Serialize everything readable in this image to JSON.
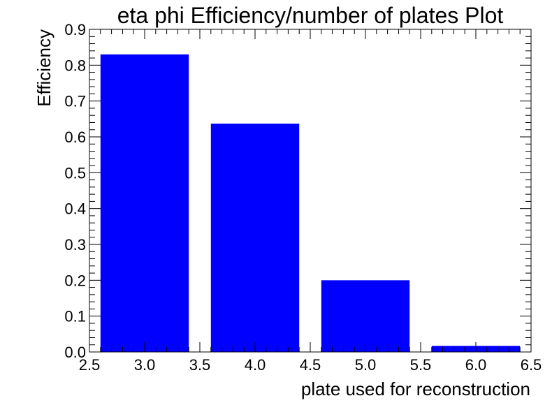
{
  "chart_data": {
    "type": "bar",
    "title": "eta phi Efficiency/number of plates Plot",
    "xlabel": "plate used for reconstruction",
    "ylabel": "Efficiency",
    "xlim": [
      2.5,
      6.5
    ],
    "ylim": [
      0,
      0.9
    ],
    "grid": false,
    "legend": "none",
    "bar_color": "#0000ff",
    "bar_width": 0.8,
    "x": [
      3,
      4,
      5,
      6
    ],
    "values": [
      0.83,
      0.637,
      0.2,
      0.017
    ],
    "x_ticks": [
      2.5,
      3.0,
      3.5,
      4.0,
      4.5,
      5.0,
      5.5,
      6.0,
      6.5
    ],
    "x_tick_labels": [
      "2.5",
      "3.0",
      "3.5",
      "4.0",
      "4.5",
      "5.0",
      "5.5",
      "6.0",
      "6.5"
    ],
    "y_ticks": [
      0.0,
      0.1,
      0.2,
      0.3,
      0.4,
      0.5,
      0.6,
      0.7,
      0.8,
      0.9
    ],
    "y_tick_labels": [
      "0.0",
      "0.1",
      "0.2",
      "0.3",
      "0.4",
      "0.5",
      "0.6",
      "0.7",
      "0.8",
      "0.9"
    ]
  }
}
